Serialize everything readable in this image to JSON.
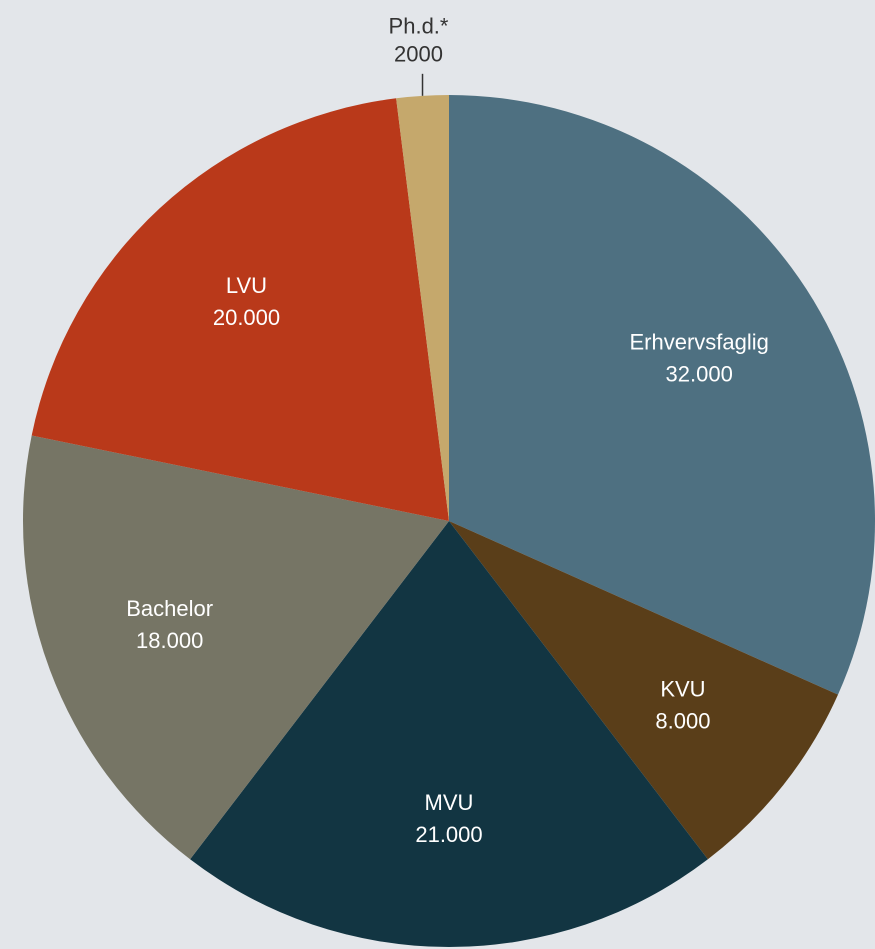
{
  "chart_data": {
    "type": "pie",
    "categories": [
      "Erhvervsfaglig",
      "KVU",
      "MVU",
      "Bachelor",
      "LVU",
      "Ph.d.*"
    ],
    "values": [
      32000,
      8000,
      21000,
      18000,
      20000,
      2000
    ],
    "value_labels": [
      "32.000",
      "8.000",
      "21.000",
      "18.000",
      "20.000",
      "2000"
    ],
    "colors": [
      "#4e7081",
      "#5a3e19",
      "#123542",
      "#767565",
      "#b9391a",
      "#c5a86c"
    ]
  }
}
